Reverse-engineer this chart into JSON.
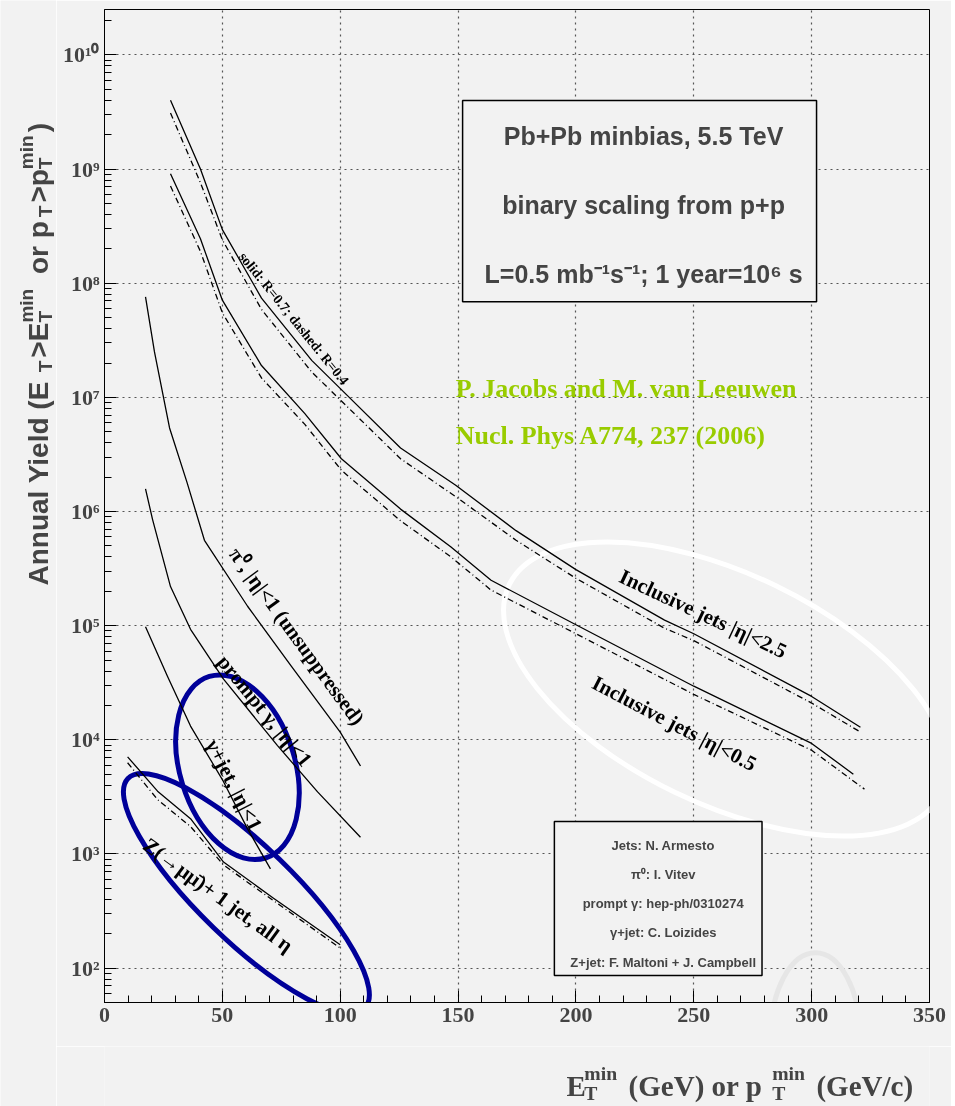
{
  "chart_data": {
    "type": "line",
    "xlabel": "E$_{T}$$^{min}$ (GeV)  or p$_{T}$$^{min}$ (GeV/c)",
    "ylabel": "Annual Yield (E$_{T}$>E$_{T}$$^{min}$ or p$_{T}$>p$_{T}$$^{min}$)",
    "xlim": [
      0,
      350
    ],
    "ylim": [
      50,
      25000000000
    ],
    "log": "y",
    "grid": true,
    "legend": false,
    "marker": "none",
    "xticks": [
      0,
      50,
      100,
      150,
      200,
      250,
      300,
      350
    ],
    "yticks": [
      {
        "value": 100,
        "label": "10²"
      },
      {
        "value": 1000,
        "label": "10³"
      },
      {
        "value": 10000,
        "label": "10⁴"
      },
      {
        "value": 100000,
        "label": "10⁵"
      },
      {
        "value": 1000000,
        "label": "10⁶"
      },
      {
        "value": 10000000,
        "label": "10⁷"
      },
      {
        "value": 100000000,
        "label": "10⁸"
      },
      {
        "value": 1000000000,
        "label": "10⁹"
      },
      {
        "value": 10000000000,
        "label": "10¹⁰"
      }
    ],
    "series": [
      {
        "name": "Inclusive jets |η|<2.5",
        "color": "#000000",
        "line_style": "solid",
        "x": [
          28,
          40.7,
          50,
          66.6,
          88,
          100.5,
          125.6,
          149,
          174.6,
          200,
          237.6,
          250,
          300,
          320.7
        ],
        "values": [
          4000000000.0,
          1000000000.0,
          295000000.0,
          74000000.0,
          21000000.0,
          11700000.0,
          3600000.0,
          1700000.0,
          680000.0,
          310000.0,
          112000.0,
          85000.0,
          24000.0,
          12900.0
        ]
      },
      {
        "color": "#000000",
        "line_style": "dashed",
        "x": [
          28,
          40.7,
          50,
          66.6,
          88,
          100.5,
          125.6,
          149,
          174.6,
          200,
          237.6,
          250,
          300,
          320.7
        ],
        "values": [
          3100000000.0,
          760000000.0,
          240000000.0,
          59000000.0,
          16600000.0,
          9300000.0,
          2900000.0,
          1350000.0,
          560000.0,
          260000.0,
          95000.0,
          74000.0,
          21000.0,
          11700.0
        ]
      },
      {
        "name": "Inclusive jets |η|<0.5",
        "color": "#000000",
        "line_style": "solid",
        "x": [
          28,
          40.7,
          50,
          66.6,
          85,
          100.5,
          125.6,
          147,
          164,
          200,
          250,
          300,
          317.7
        ],
        "values": [
          910000000.0,
          245000000.0,
          71000000.0,
          19000000.0,
          7200000.0,
          2900000.0,
          1050000.0,
          490000.0,
          250000.0,
          102000.0,
          29500.0,
          9300.0,
          5000.0
        ]
      },
      {
        "color": "#000000",
        "line_style": "dashed",
        "x": [
          28,
          40.7,
          50,
          66.6,
          85,
          100.5,
          125.6,
          147,
          164,
          200,
          250,
          300,
          322.4
        ],
        "values": [
          710000000.0,
          190000000.0,
          55000000.0,
          14800000.0,
          5800000.0,
          2300000.0,
          830000.0,
          400000.0,
          205000.0,
          85000.0,
          25000.0,
          8100.0,
          3700.0
        ]
      },
      {
        "name": "π⁰, |η|<1 (unsuppressed)",
        "color": "#000000",
        "line_style": "solid",
        "x": [
          17.4,
          21.2,
          27.6,
          35,
          42.4,
          60.7,
          79,
          100,
          108.6
        ],
        "values": [
          76000000.0,
          25000000.0,
          5400000.0,
          1800000.0,
          560000.0,
          148000.0,
          45000.0,
          11700.0,
          5900.0
        ]
      },
      {
        "name": "prompt γ, |η|<1",
        "color": "#000000",
        "line_style": "solid",
        "x": [
          17.4,
          20.4,
          28,
          36.5,
          50.5,
          73.4,
          90.4,
          108.6
        ],
        "values": [
          1580000.0,
          850000.0,
          220000.0,
          93000.0,
          34000.0,
          8900.0,
          3500.0,
          1400.0
        ]
      },
      {
        "name": "γ+jet, |η|<1",
        "color": "#000000",
        "line_style": "solid",
        "x": [
          17.4,
          26.7,
          36.5,
          50.5,
          60.7,
          70.4
        ],
        "values": [
          98000.0,
          36000.0,
          13200.0,
          4300.0,
          1660.0,
          740
        ]
      },
      {
        "name": "Z(→μμ̄)+ 1 jet, all η",
        "color": "#000000",
        "line_style": "solid",
        "x": [
          9.8,
          22.5,
          36.5,
          50.5,
          71.7,
          100
        ],
        "values": [
          7100,
          3550,
          2040,
          850,
          410,
          160
        ]
      },
      {
        "color": "#000000",
        "line_style": "dashed",
        "x": [
          9.8,
          22.5,
          36.5,
          50.5,
          71.7,
          100
        ],
        "values": [
          6300,
          3000,
          1740,
          800,
          390,
          150
        ]
      }
    ],
    "annotations": [
      "Pb+Pb minbias, 5.5 TeV",
      "binary scaling from p+p",
      "L=0.5 mb⁻¹s⁻¹; 1 year=10⁶ s",
      "P. Jacobs and M. van Leeuwen",
      "Nucl. Phys A774, 237 (2006)",
      "Jets: N. Armesto",
      "π⁰: I. Vitev",
      "prompt γ: hep-ph/0310274",
      "γ+jet: C. Loizides",
      "Z+jet: F. Maltoni + J. Campbell",
      {
        "text": "solid: R=0.7; dashed: R=0.4",
        "x": 75,
        "y": 40000000
      }
    ]
  }
}
